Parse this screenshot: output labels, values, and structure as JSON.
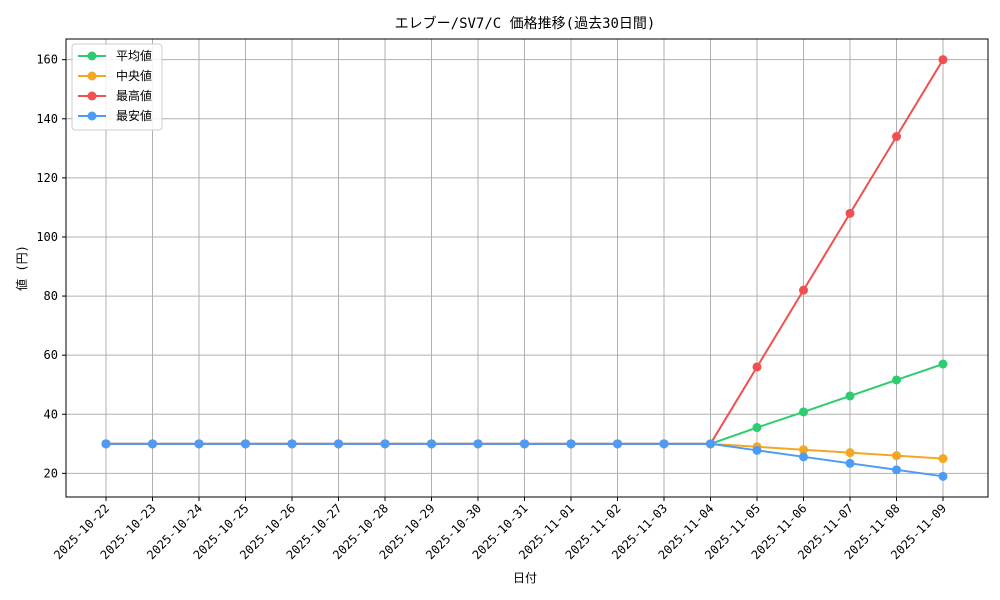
{
  "chart_data": {
    "type": "line",
    "title": "エレブー/SV7/C 価格推移(過去30日間)",
    "xlabel": "日付",
    "ylabel": "値 (円)",
    "x": [
      "2025-10-22",
      "2025-10-23",
      "2025-10-24",
      "2025-10-25",
      "2025-10-26",
      "2025-10-27",
      "2025-10-28",
      "2025-10-29",
      "2025-10-30",
      "2025-10-31",
      "2025-11-01",
      "2025-11-02",
      "2025-11-03",
      "2025-11-04",
      "2025-11-05",
      "2025-11-06",
      "2025-11-07",
      "2025-11-08",
      "2025-11-09"
    ],
    "yticks": [
      20,
      40,
      60,
      80,
      100,
      120,
      140,
      160
    ],
    "ylim": [
      12,
      167
    ],
    "grid": true,
    "legend_position": "top-left",
    "series": [
      {
        "name": "平均値",
        "color": "#2ecc71",
        "values": [
          30,
          30,
          30,
          30,
          30,
          30,
          30,
          30,
          30,
          30,
          30,
          30,
          30,
          30,
          35.5,
          40.8,
          46.2,
          51.6,
          57
        ]
      },
      {
        "name": "中央値",
        "color": "#f5a623",
        "values": [
          30,
          30,
          30,
          30,
          30,
          30,
          30,
          30,
          30,
          30,
          30,
          30,
          30,
          30,
          29,
          28,
          27,
          26,
          25
        ]
      },
      {
        "name": "最高値",
        "color": "#f05050",
        "values": [
          30,
          30,
          30,
          30,
          30,
          30,
          30,
          30,
          30,
          30,
          30,
          30,
          30,
          30,
          56,
          82,
          108,
          134,
          160
        ]
      },
      {
        "name": "最安値",
        "color": "#4c9bf5",
        "values": [
          30,
          30,
          30,
          30,
          30,
          30,
          30,
          30,
          30,
          30,
          30,
          30,
          30,
          30,
          27.8,
          25.6,
          23.4,
          21.2,
          19
        ]
      }
    ]
  }
}
